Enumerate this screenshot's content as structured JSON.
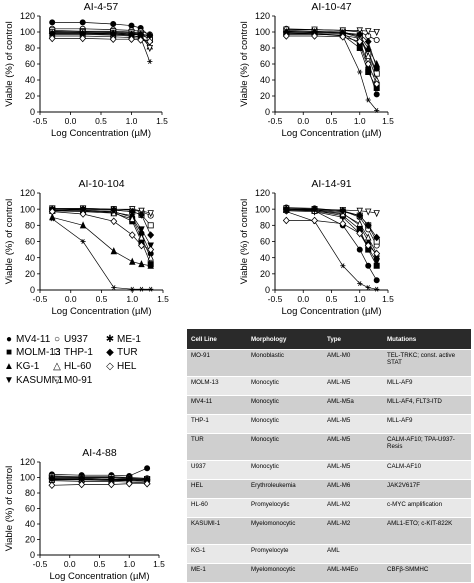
{
  "chart_data": [
    {
      "type": "line",
      "title": "AI-4-57",
      "xlabel": "Log Concentration (µM)",
      "ylabel": "Viable (%) of control",
      "xlim": [
        -0.5,
        1.5
      ],
      "ylim": [
        0,
        120
      ],
      "xticks": [
        "-0.5",
        "0.0",
        "0.5",
        "1.0",
        "1.5"
      ],
      "yticks": [
        "0",
        "20",
        "40",
        "60",
        "80",
        "100",
        "120"
      ],
      "x": [
        -0.3,
        0.2,
        0.7,
        1.0,
        1.15,
        1.3
      ],
      "series": [
        {
          "name": "MV4-11",
          "values": [
            112,
            112,
            110,
            108,
            105,
            95
          ]
        },
        {
          "name": "MOLM-13",
          "values": [
            101,
            100,
            100,
            99,
            98,
            94
          ]
        },
        {
          "name": "KG-1",
          "values": [
            99,
            99,
            98,
            97,
            96,
            92
          ]
        },
        {
          "name": "KASUMI-1",
          "values": [
            95,
            95,
            94,
            93,
            92,
            88
          ]
        },
        {
          "name": "U937",
          "values": [
            104,
            104,
            103,
            102,
            101,
            97
          ]
        },
        {
          "name": "THP-1",
          "values": [
            102,
            101,
            101,
            100,
            99,
            90
          ]
        },
        {
          "name": "HL-60",
          "values": [
            97,
            97,
            96,
            95,
            94,
            82
          ]
        },
        {
          "name": "M0-91",
          "values": [
            100,
            100,
            99,
            98,
            97,
            80
          ]
        },
        {
          "name": "ME-1",
          "values": [
            98,
            98,
            97,
            96,
            93,
            63
          ]
        },
        {
          "name": "TUR",
          "values": [
            98,
            98,
            98,
            97,
            97,
            96
          ]
        },
        {
          "name": "HEL",
          "values": [
            92,
            92,
            91,
            91,
            90,
            88
          ]
        }
      ]
    },
    {
      "type": "line",
      "title": "AI-10-47",
      "xlabel": "Log Concentration (µM)",
      "ylabel": "Viable (%) of control",
      "xlim": [
        -0.5,
        1.5
      ],
      "ylim": [
        0,
        120
      ],
      "xticks": [
        "-0.5",
        "0.0",
        "0.5",
        "1.0",
        "1.5"
      ],
      "yticks": [
        "0",
        "20",
        "40",
        "60",
        "80",
        "100",
        "120"
      ],
      "x": [
        -0.3,
        0.2,
        0.7,
        1.0,
        1.15,
        1.3
      ],
      "series": [
        {
          "name": "MV4-11",
          "values": [
            100,
            99,
            98,
            85,
            55,
            22
          ]
        },
        {
          "name": "MOLM-13",
          "values": [
            98,
            98,
            96,
            80,
            50,
            30
          ]
        },
        {
          "name": "KG-1",
          "values": [
            101,
            100,
            99,
            95,
            80,
            60
          ]
        },
        {
          "name": "KASUMI-1",
          "values": [
            97,
            97,
            96,
            92,
            75,
            50
          ]
        },
        {
          "name": "U937",
          "values": [
            104,
            103,
            102,
            100,
            95,
            90
          ]
        },
        {
          "name": "THP-1",
          "values": [
            102,
            101,
            100,
            95,
            72,
            48
          ]
        },
        {
          "name": "HL-60",
          "values": [
            100,
            100,
            99,
            93,
            70,
            40
          ]
        },
        {
          "name": "M0-91",
          "values": [
            103,
            103,
            102,
            102,
            101,
            100
          ]
        },
        {
          "name": "ME-1",
          "values": [
            99,
            98,
            95,
            50,
            15,
            2
          ]
        },
        {
          "name": "TUR",
          "values": [
            100,
            100,
            99,
            97,
            88,
            55
          ]
        },
        {
          "name": "HEL",
          "values": [
            95,
            95,
            94,
            88,
            60,
            35
          ]
        }
      ]
    },
    {
      "type": "line",
      "title": "AI-10-104",
      "xlabel": "Log Concentration (µM)",
      "ylabel": "Viable (%) of control",
      "xlim": [
        -0.5,
        1.5
      ],
      "ylim": [
        0,
        120
      ],
      "xticks": [
        "-0.5",
        "0.0",
        "0.5",
        "1.0",
        "1.5"
      ],
      "yticks": [
        "0",
        "20",
        "40",
        "60",
        "80",
        "100",
        "120"
      ],
      "x": [
        -0.3,
        0.2,
        0.7,
        1.0,
        1.15,
        1.3
      ],
      "series": [
        {
          "name": "MV4-11",
          "values": [
            100,
            99,
            97,
            90,
            70,
            45
          ]
        },
        {
          "name": "MOLM-13",
          "values": [
            98,
            98,
            96,
            85,
            60,
            32
          ]
        },
        {
          "name": "KG-1",
          "values": [
            90,
            80,
            48,
            35,
            32,
            30
          ]
        },
        {
          "name": "KASUMI-1",
          "values": [
            99,
            98,
            96,
            92,
            75,
            55
          ]
        },
        {
          "name": "U937",
          "values": [
            101,
            101,
            100,
            99,
            97,
            92
          ]
        },
        {
          "name": "THP-1",
          "values": [
            100,
            100,
            99,
            97,
            93,
            80
          ]
        },
        {
          "name": "HL-60",
          "values": [
            98,
            97,
            95,
            88,
            65,
            40
          ]
        },
        {
          "name": "M0-91",
          "values": [
            101,
            101,
            100,
            100,
            98,
            95
          ]
        },
        {
          "name": "ME-1",
          "values": [
            88,
            60,
            3,
            1,
            1,
            1
          ]
        },
        {
          "name": "TUR",
          "values": [
            100,
            100,
            99,
            97,
            93,
            68
          ]
        },
        {
          "name": "HEL",
          "values": [
            97,
            94,
            85,
            68,
            55,
            50
          ]
        }
      ]
    },
    {
      "type": "line",
      "title": "AI-14-91",
      "xlabel": "Log Concentration (µM)",
      "ylabel": "Viable (%) of control",
      "xlim": [
        -0.5,
        1.5
      ],
      "ylim": [
        0,
        120
      ],
      "xticks": [
        "-0.5",
        "0.0",
        "0.5",
        "1.0",
        "1.5"
      ],
      "yticks": [
        "0",
        "20",
        "40",
        "60",
        "80",
        "100",
        "120"
      ],
      "x": [
        -0.3,
        0.2,
        0.7,
        1.0,
        1.15,
        1.3
      ],
      "series": [
        {
          "name": "MV4-11",
          "values": [
            100,
            98,
            80,
            50,
            30,
            12
          ]
        },
        {
          "name": "MOLM-13",
          "values": [
            99,
            98,
            92,
            75,
            50,
            30
          ]
        },
        {
          "name": "KG-1",
          "values": [
            100,
            99,
            95,
            80,
            60,
            42
          ]
        },
        {
          "name": "KASUMI-1",
          "values": [
            98,
            97,
            90,
            70,
            52,
            35
          ]
        },
        {
          "name": "U937",
          "values": [
            102,
            101,
            98,
            90,
            75,
            55
          ]
        },
        {
          "name": "THP-1",
          "values": [
            100,
            99,
            97,
            92,
            80,
            60
          ]
        },
        {
          "name": "HL-60",
          "values": [
            99,
            98,
            94,
            82,
            65,
            45
          ]
        },
        {
          "name": "M0-91",
          "values": [
            101,
            100,
            99,
            98,
            97,
            95
          ]
        },
        {
          "name": "ME-1",
          "values": [
            97,
            85,
            30,
            8,
            3,
            1
          ]
        },
        {
          "name": "TUR",
          "values": [
            100,
            100,
            98,
            92,
            80,
            65
          ]
        },
        {
          "name": "HEL",
          "values": [
            86,
            86,
            82,
            70,
            55,
            45
          ]
        }
      ]
    },
    {
      "type": "line",
      "title": "AI-4-88",
      "xlabel": "Log Concentration (µM)",
      "ylabel": "Viable (%) of control",
      "xlim": [
        -0.5,
        1.5
      ],
      "ylim": [
        0,
        120
      ],
      "xticks": [
        "-0.5",
        "0.0",
        "0.5",
        "1.0",
        "1.5"
      ],
      "yticks": [
        "0",
        "20",
        "40",
        "60",
        "80",
        "100",
        "120"
      ],
      "x": [
        -0.3,
        0.2,
        0.7,
        1.0,
        1.3
      ],
      "series": [
        {
          "name": "MV4-11",
          "values": [
            104,
            103,
            103,
            102,
            112
          ]
        },
        {
          "name": "MOLM-13",
          "values": [
            100,
            100,
            100,
            99,
            98
          ]
        },
        {
          "name": "KG-1",
          "values": [
            98,
            98,
            97,
            97,
            96
          ]
        },
        {
          "name": "KASUMI-1",
          "values": [
            96,
            95,
            95,
            94,
            93
          ]
        },
        {
          "name": "U937",
          "values": [
            102,
            101,
            101,
            100,
            99
          ]
        },
        {
          "name": "THP-1",
          "values": [
            101,
            100,
            100,
            99,
            98
          ]
        },
        {
          "name": "HL-60",
          "values": [
            97,
            97,
            96,
            96,
            95
          ]
        },
        {
          "name": "M0-91",
          "values": [
            99,
            99,
            98,
            98,
            97
          ]
        },
        {
          "name": "ME-1",
          "values": [
            98,
            97,
            97,
            96,
            95
          ]
        },
        {
          "name": "TUR",
          "values": [
            99,
            99,
            98,
            98,
            97
          ]
        },
        {
          "name": "HEL",
          "values": [
            90,
            91,
            91,
            92,
            92
          ]
        }
      ]
    }
  ],
  "legend": [
    {
      "symbol": "filled-circle",
      "label": "MV4-11"
    },
    {
      "symbol": "filled-square",
      "label": "MOLM-13"
    },
    {
      "symbol": "filled-triangle-up",
      "label": "KG-1"
    },
    {
      "symbol": "filled-triangle-down",
      "label": "KASUMI-1"
    },
    {
      "symbol": "open-circle",
      "label": "U937"
    },
    {
      "symbol": "open-square",
      "label": "THP-1"
    },
    {
      "symbol": "open-triangle-up",
      "label": "HL-60"
    },
    {
      "symbol": "open-triangle-down",
      "label": "M0-91"
    },
    {
      "symbol": "asterisk",
      "label": "ME-1"
    },
    {
      "symbol": "filled-diamond",
      "label": "TUR"
    },
    {
      "symbol": "open-diamond",
      "label": "HEL"
    }
  ],
  "table": {
    "headers": [
      "Cell Line",
      "Morphology",
      "Type",
      "Mutations"
    ],
    "rows": [
      [
        "MO-91",
        "Monoblastic",
        "AML-M0",
        "TEL-TRKC; const. active STAT"
      ],
      [
        "MOLM-13",
        "Monocytic",
        "AML-M5",
        "MLL-AF9"
      ],
      [
        "MV4-11",
        "Monocytic",
        "AML-M5a",
        "MLL-AF4, FLT3-ITD"
      ],
      [
        "THP-1",
        "Monocytic",
        "AML-M5",
        "MLL-AF9"
      ],
      [
        "TUR",
        "Monocytic",
        "AML-M5",
        "CALM-AF10; TPA-U937-Resis"
      ],
      [
        "U937",
        "Monocytic",
        "AML-M5",
        "CALM-AF10"
      ],
      [
        "HEL",
        "Erythroleukemia",
        "AML-M6",
        "JAK2V617F"
      ],
      [
        "HL-60",
        "Promyelocytic",
        "AML-M2",
        "c-MYC amplification"
      ],
      [
        "KASUMI-1",
        "Myelomonocytic",
        "AML-M2",
        "AML1-ETO; c-KIT-822K"
      ],
      [
        "KG-1",
        "Promyelocyte",
        "AML",
        ""
      ],
      [
        "ME-1",
        "Myelomonocytic",
        "AML-M4Eo",
        "CBFβ-SMMHC"
      ]
    ]
  },
  "colors": {
    "line": "#000000",
    "header_bg": "#2a2a2a",
    "row_dark": "#cfcfcf",
    "row_light": "#e8e8e8"
  }
}
